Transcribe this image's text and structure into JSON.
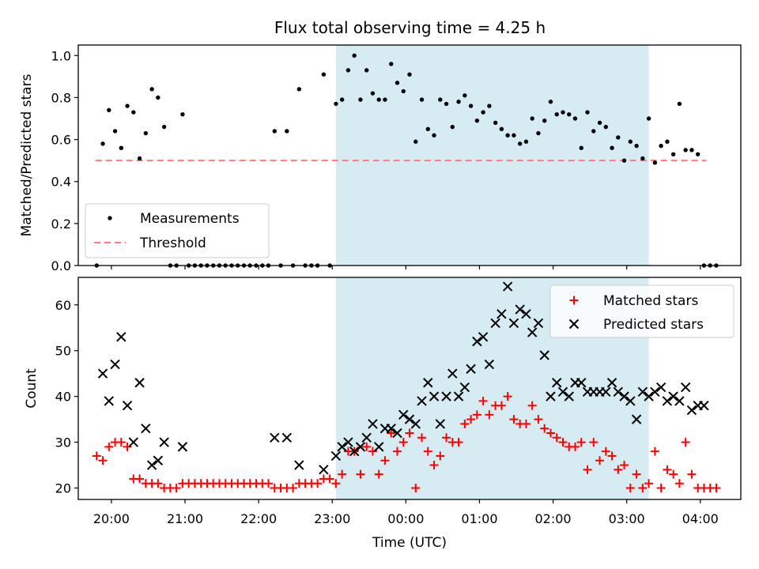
{
  "figure_title": "Flux total observing time = 4.25 h",
  "chart_data": [
    {
      "type": "scatter",
      "panel": "top",
      "ylabel": "Matched/Predicted stars",
      "xlabel": "",
      "ylim": [
        0,
        1.05
      ],
      "yticks": [
        "0.0",
        "0.2",
        "0.4",
        "0.6",
        "0.8",
        "1.0"
      ],
      "xlim": [
        "19:33",
        "04:33"
      ],
      "shaded_window": {
        "start": "23:03",
        "end": "03:18",
        "color": "#add8e6"
      },
      "threshold": {
        "name": "Threshold",
        "value": 0.5,
        "x_start": "19:47",
        "x_end": "04:05",
        "color": "#ff7b7b"
      },
      "legend_position": "lower left",
      "series": [
        {
          "name": "Measurements",
          "marker": "dot",
          "color": "#000000",
          "x": [
            "19:48",
            "19:53",
            "19:58",
            "20:03",
            "20:08",
            "20:13",
            "20:18",
            "20:23",
            "20:28",
            "20:33",
            "20:38",
            "20:43",
            "20:48",
            "20:53",
            "20:58",
            "21:03",
            "21:08",
            "21:13",
            "21:18",
            "21:23",
            "21:28",
            "21:33",
            "21:38",
            "21:43",
            "21:48",
            "21:53",
            "21:58",
            "22:03",
            "22:08",
            "22:13",
            "22:18",
            "22:23",
            "22:28",
            "22:33",
            "22:38",
            "22:43",
            "22:48",
            "22:53",
            "22:58",
            "23:03",
            "23:08",
            "23:13",
            "23:18",
            "23:23",
            "23:28",
            "23:33",
            "23:38",
            "23:43",
            "23:48",
            "23:53",
            "23:58",
            "00:03",
            "00:08",
            "00:13",
            "00:18",
            "00:23",
            "00:28",
            "00:33",
            "00:38",
            "00:43",
            "00:48",
            "00:53",
            "00:58",
            "01:03",
            "01:08",
            "01:13",
            "01:18",
            "01:23",
            "01:28",
            "01:33",
            "01:38",
            "01:43",
            "01:48",
            "01:53",
            "01:58",
            "02:03",
            "02:08",
            "02:13",
            "02:18",
            "02:23",
            "02:28",
            "02:33",
            "02:38",
            "02:43",
            "02:48",
            "02:53",
            "02:58",
            "03:03",
            "03:08",
            "03:13",
            "03:18",
            "03:23",
            "03:28",
            "03:33",
            "03:38",
            "03:43",
            "03:48",
            "03:53",
            "03:58",
            "04:03",
            "04:08",
            "04:13"
          ],
          "y": [
            0.0,
            0.58,
            0.74,
            0.64,
            0.56,
            0.76,
            0.73,
            0.51,
            0.63,
            0.84,
            0.8,
            0.66,
            0.0,
            0.0,
            0.72,
            0.0,
            0.0,
            0.0,
            0.0,
            0.0,
            0.0,
            0.0,
            0.0,
            0.0,
            0.0,
            0.0,
            0.0,
            0.0,
            0.0,
            0.64,
            0.0,
            0.64,
            0.0,
            0.84,
            0.0,
            0.0,
            0.0,
            0.91,
            0.0,
            0.77,
            0.79,
            0.93,
            1.0,
            0.79,
            0.93,
            0.82,
            0.79,
            0.79,
            0.96,
            0.87,
            0.83,
            0.91,
            0.59,
            0.79,
            0.65,
            0.62,
            0.79,
            0.77,
            0.66,
            0.78,
            0.81,
            0.76,
            0.69,
            0.73,
            0.76,
            0.68,
            0.65,
            0.62,
            0.62,
            0.58,
            0.59,
            0.7,
            0.63,
            0.69,
            0.78,
            0.72,
            0.73,
            0.72,
            0.7,
            0.56,
            0.73,
            0.64,
            0.68,
            0.66,
            0.56,
            0.61,
            0.5,
            0.59,
            0.57,
            0.51,
            0.7,
            0.49,
            0.57,
            0.59,
            0.53,
            0.77,
            0.55,
            0.55,
            0.53,
            0.0,
            0.0,
            0.0
          ]
        }
      ]
    },
    {
      "type": "scatter",
      "panel": "bottom",
      "ylabel": "Count",
      "xlabel": "Time (UTC)",
      "ylim": [
        17.5,
        66
      ],
      "yticks": [
        "20",
        "30",
        "40",
        "50",
        "60"
      ],
      "xlim": [
        "19:33",
        "04:33"
      ],
      "xticks": [
        "20:00",
        "21:00",
        "22:00",
        "23:00",
        "00:00",
        "01:00",
        "02:00",
        "03:00",
        "04:00"
      ],
      "shaded_window": {
        "start": "23:03",
        "end": "03:18",
        "color": "#add8e6"
      },
      "legend_position": "upper right",
      "series": [
        {
          "name": "Matched stars",
          "marker": "plus",
          "color": "#ff0000",
          "x": [
            "19:48",
            "19:53",
            "19:58",
            "20:03",
            "20:08",
            "20:13",
            "20:18",
            "20:23",
            "20:28",
            "20:33",
            "20:38",
            "20:43",
            "20:48",
            "20:53",
            "20:58",
            "21:03",
            "21:08",
            "21:13",
            "21:18",
            "21:23",
            "21:28",
            "21:33",
            "21:38",
            "21:43",
            "21:48",
            "21:53",
            "21:58",
            "22:03",
            "22:08",
            "22:13",
            "22:18",
            "22:23",
            "22:28",
            "22:33",
            "22:38",
            "22:43",
            "22:48",
            "22:53",
            "22:58",
            "23:03",
            "23:08",
            "23:13",
            "23:18",
            "23:23",
            "23:28",
            "23:33",
            "23:38",
            "23:43",
            "23:48",
            "23:53",
            "23:58",
            "00:03",
            "00:08",
            "00:13",
            "00:18",
            "00:23",
            "00:28",
            "00:33",
            "00:38",
            "00:43",
            "00:48",
            "00:53",
            "00:58",
            "01:03",
            "01:08",
            "01:13",
            "01:18",
            "01:23",
            "01:28",
            "01:33",
            "01:38",
            "01:43",
            "01:48",
            "01:53",
            "01:58",
            "02:03",
            "02:08",
            "02:13",
            "02:18",
            "02:23",
            "02:28",
            "02:33",
            "02:38",
            "02:43",
            "02:48",
            "02:53",
            "02:58",
            "03:03",
            "03:08",
            "03:13",
            "03:18",
            "03:23",
            "03:28",
            "03:33",
            "03:38",
            "03:43",
            "03:48",
            "03:53",
            "03:58",
            "04:03",
            "04:08",
            "04:13"
          ],
          "y": [
            27,
            26,
            29,
            30,
            30,
            29,
            22,
            22,
            21,
            21,
            21,
            20,
            20,
            20,
            21,
            21,
            21,
            21,
            21,
            21,
            21,
            21,
            21,
            21,
            21,
            21,
            21,
            21,
            21,
            20,
            20,
            20,
            20,
            21,
            21,
            21,
            21,
            22,
            22,
            21,
            23,
            28,
            28,
            23,
            29,
            28,
            23,
            26,
            32,
            28,
            30,
            32,
            20,
            31,
            28,
            25,
            27,
            31,
            30,
            30,
            34,
            35,
            36,
            39,
            36,
            38,
            38,
            40,
            35,
            34,
            34,
            38,
            35,
            33,
            32,
            31,
            30,
            29,
            29,
            30,
            24,
            30,
            26,
            28,
            27,
            24,
            25,
            20,
            23,
            20,
            21,
            28,
            20,
            24,
            23,
            21,
            30,
            23,
            20,
            20,
            20,
            20
          ]
        },
        {
          "name": "Predicted stars",
          "marker": "x",
          "color": "#000000",
          "x": [
            "19:53",
            "19:58",
            "20:03",
            "20:08",
            "20:13",
            "20:18",
            "20:23",
            "20:28",
            "20:33",
            "20:38",
            "20:43",
            "20:58",
            "22:13",
            "22:23",
            "22:33",
            "22:53",
            "23:03",
            "23:08",
            "23:13",
            "23:18",
            "23:23",
            "23:28",
            "23:33",
            "23:38",
            "23:43",
            "23:48",
            "23:53",
            "23:58",
            "00:03",
            "00:08",
            "00:13",
            "00:18",
            "00:23",
            "00:28",
            "00:33",
            "00:38",
            "00:43",
            "00:48",
            "00:53",
            "00:58",
            "01:03",
            "01:08",
            "01:13",
            "01:18",
            "01:23",
            "01:28",
            "01:33",
            "01:38",
            "01:43",
            "01:48",
            "01:53",
            "01:58",
            "02:03",
            "02:08",
            "02:13",
            "02:18",
            "02:23",
            "02:28",
            "02:33",
            "02:38",
            "02:43",
            "02:48",
            "02:53",
            "02:58",
            "03:03",
            "03:08",
            "03:13",
            "03:18",
            "03:23",
            "03:28",
            "03:33",
            "03:38",
            "03:43",
            "03:48",
            "03:53",
            "03:58",
            "04:03"
          ],
          "y": [
            45,
            39,
            47,
            53,
            38,
            30,
            43,
            33,
            25,
            26,
            30,
            29,
            31,
            31,
            25,
            24,
            27,
            29,
            30,
            28,
            29,
            31,
            34,
            29,
            33,
            33,
            32,
            36,
            35,
            34,
            39,
            43,
            40,
            34,
            40,
            45,
            40,
            42,
            46,
            52,
            53,
            47,
            56,
            58,
            64,
            56,
            59,
            58,
            54,
            56,
            49,
            40,
            43,
            41,
            40,
            43,
            43,
            41,
            41,
            41,
            41,
            43,
            41,
            40,
            39,
            35,
            41,
            40,
            41,
            42,
            39,
            40,
            39,
            42,
            37,
            38,
            38
          ]
        }
      ]
    }
  ]
}
